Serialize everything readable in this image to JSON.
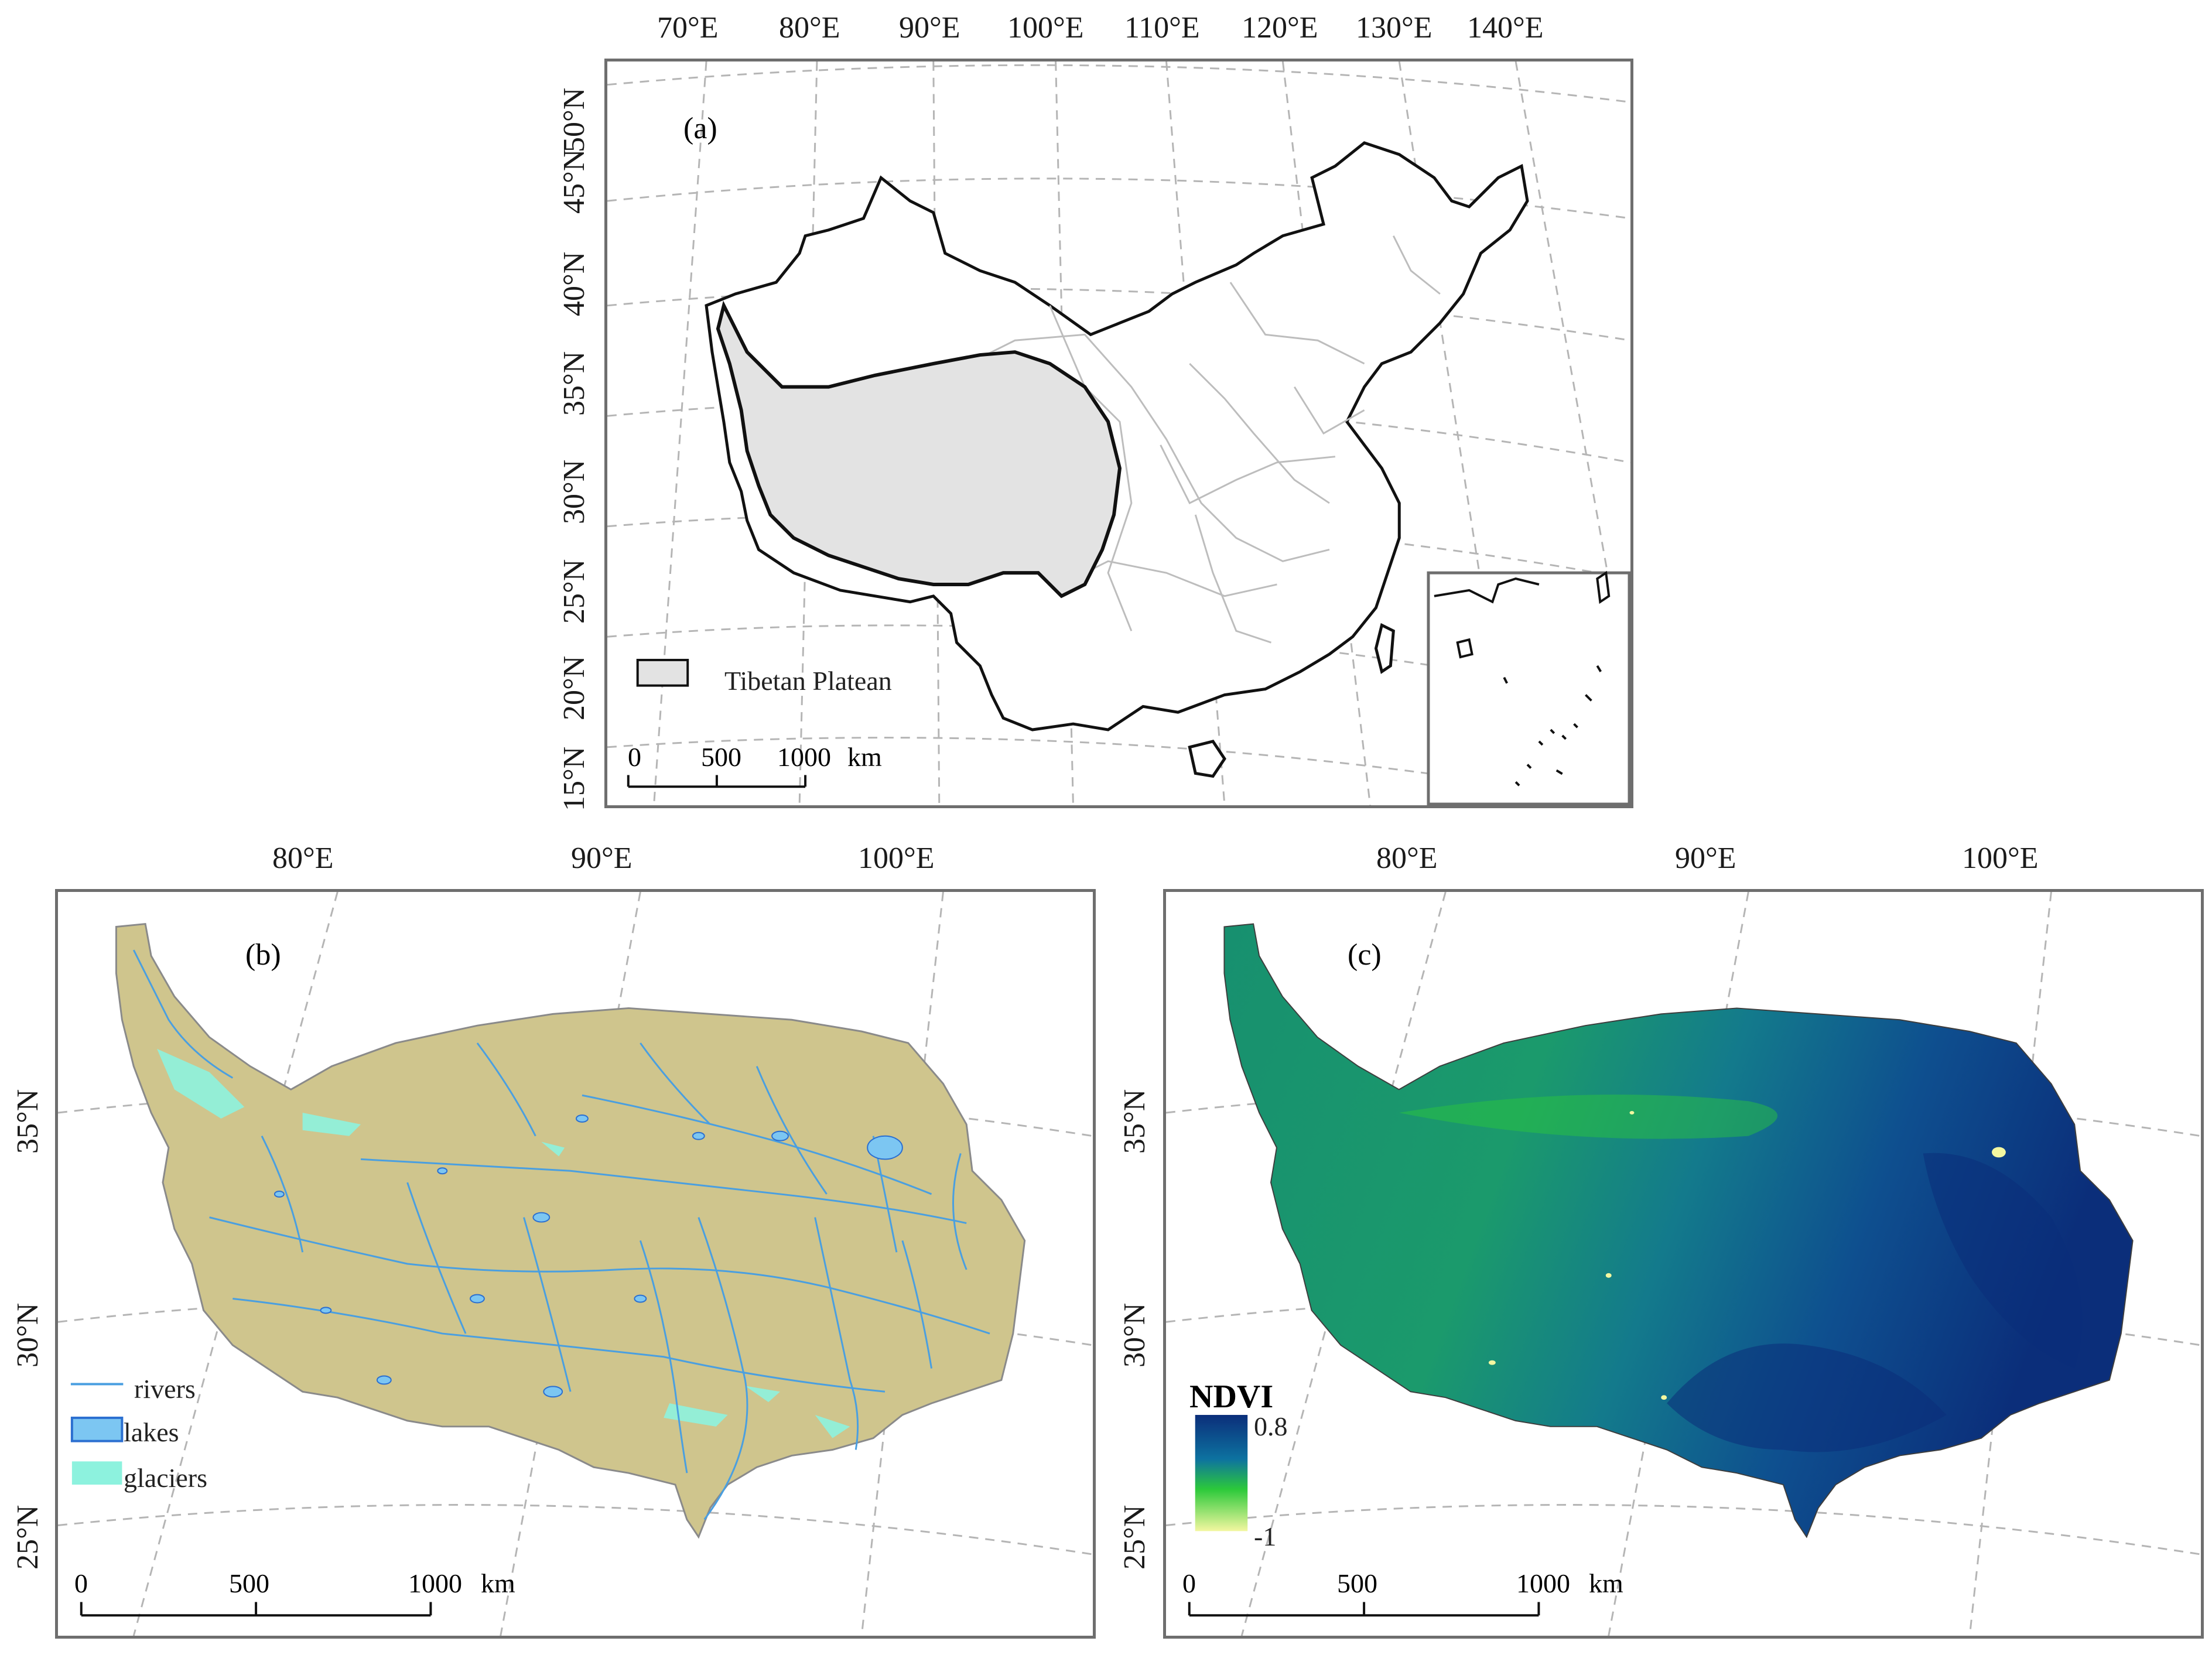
{
  "panel_a": {
    "id": "(a)",
    "lon_labels": [
      "70°E",
      "80°E",
      "90°E",
      "100°E",
      "110°E",
      "120°E",
      "130°E",
      "140°E"
    ],
    "lat_labels": [
      "50°N",
      "45°N",
      "40°N",
      "35°N",
      "30°N",
      "25°N",
      "20°N",
      "15°N"
    ],
    "legend": {
      "label": "Tibetan Platean",
      "fill_color": "#e3e3e3"
    },
    "scale_bar": {
      "ticks": [
        "0",
        "500",
        "1000"
      ],
      "unit": "km"
    }
  },
  "panel_b": {
    "id": "(b)",
    "lon_labels": [
      "80°E",
      "90°E",
      "100°E"
    ],
    "lat_labels": [
      "35°N",
      "30°N",
      "25°N"
    ],
    "legend": [
      {
        "label": "rivers",
        "color": "#4a9fe0"
      },
      {
        "label": "lakes",
        "color": "#7cc6f2"
      },
      {
        "label": "glaciers",
        "color": "#8df2de"
      }
    ],
    "plateau_color": "#cfc58d",
    "scale_bar": {
      "ticks": [
        "0",
        "500",
        "1000"
      ],
      "unit": "km"
    }
  },
  "panel_c": {
    "id": "(c)",
    "lon_labels": [
      "80°E",
      "90°E",
      "100°E"
    ],
    "lat_labels": [
      "35°N",
      "30°N",
      "25°N"
    ],
    "legend": {
      "title": "NDVI",
      "max": "0.8",
      "min": "-1",
      "colors": [
        "#0b2e7a",
        "#0d72a0",
        "#2cc93a",
        "#f3f7a0"
      ]
    },
    "scale_bar": {
      "ticks": [
        "0",
        "500",
        "1000"
      ],
      "unit": "km"
    }
  }
}
